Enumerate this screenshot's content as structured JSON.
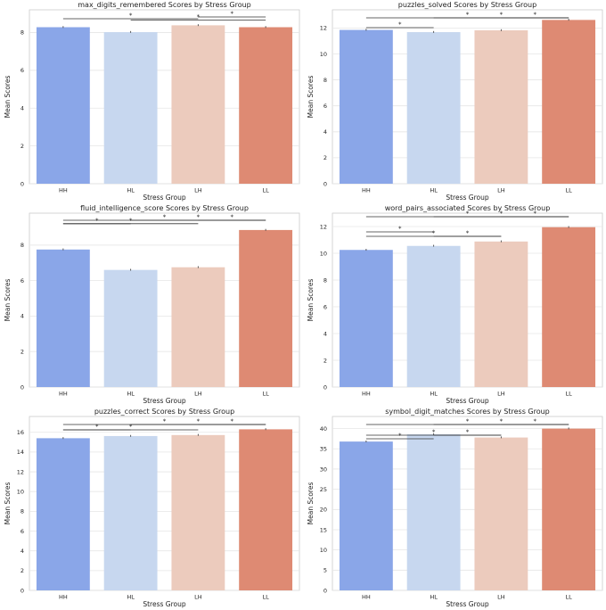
{
  "chart_data": [
    {
      "type": "bar",
      "title": "max_digits_remembered Scores by Stress Group",
      "xlabel": "Stress Group",
      "ylabel": "Mean Scores",
      "categories": [
        "HH",
        "HL",
        "LH",
        "LL"
      ],
      "values": [
        8.28,
        8.02,
        8.38,
        8.28
      ],
      "ylim": [
        0,
        9.2
      ],
      "yticks": [
        0,
        2,
        4,
        6,
        8
      ],
      "colors": [
        "#8aa6e8",
        "#c7d7ef",
        "#eccbbd",
        "#de8a73"
      ],
      "significance": [
        {
          "from": "HH",
          "to": "LH",
          "label": "*"
        },
        {
          "from": "HL",
          "to": "LL",
          "label": "*"
        },
        {
          "from": "LH",
          "to": "LL",
          "label": "*"
        }
      ]
    },
    {
      "type": "bar",
      "title": "puzzles_solved Scores by Stress Group",
      "xlabel": "Stress Group",
      "ylabel": "Mean Scores",
      "categories": [
        "HH",
        "HL",
        "LH",
        "LL"
      ],
      "values": [
        11.85,
        11.68,
        11.82,
        12.62
      ],
      "ylim": [
        0,
        13.4
      ],
      "yticks": [
        0,
        2,
        4,
        6,
        8,
        10,
        12
      ],
      "colors": [
        "#8aa6e8",
        "#c7d7ef",
        "#eccbbd",
        "#de8a73"
      ],
      "significance": [
        {
          "from": "HH",
          "to": "HL",
          "label": "*"
        },
        {
          "from": "HH",
          "to": "LL",
          "label": "*"
        },
        {
          "from": "HL",
          "to": "LL",
          "label": "*"
        },
        {
          "from": "LH",
          "to": "LL",
          "label": "*"
        }
      ]
    },
    {
      "type": "bar",
      "title": "fluid_intelligence_score Scores by Stress Group",
      "xlabel": "Stress Group",
      "ylabel": "Mean Scores",
      "categories": [
        "HH",
        "HL",
        "LH",
        "LL"
      ],
      "values": [
        7.75,
        6.6,
        6.75,
        8.85
      ],
      "ylim": [
        0,
        9.8
      ],
      "yticks": [
        0,
        2,
        4,
        6,
        8
      ],
      "colors": [
        "#8aa6e8",
        "#c7d7ef",
        "#eccbbd",
        "#de8a73"
      ],
      "significance": [
        {
          "from": "HH",
          "to": "HL",
          "label": "*"
        },
        {
          "from": "HH",
          "to": "LH",
          "label": "*"
        },
        {
          "from": "HH",
          "to": "LL",
          "label": "*"
        },
        {
          "from": "HL",
          "to": "LL",
          "label": "*"
        },
        {
          "from": "LH",
          "to": "LL",
          "label": "*"
        }
      ]
    },
    {
      "type": "bar",
      "title": "word_pairs_associated Scores by Stress Group",
      "xlabel": "Stress Group",
      "ylabel": "Mean Scores",
      "categories": [
        "HH",
        "HL",
        "LH",
        "LL"
      ],
      "values": [
        10.25,
        10.55,
        10.88,
        11.95
      ],
      "ylim": [
        0,
        13.0
      ],
      "yticks": [
        0,
        2,
        4,
        6,
        8,
        10,
        12
      ],
      "colors": [
        "#8aa6e8",
        "#c7d7ef",
        "#eccbbd",
        "#de8a73"
      ],
      "significance": [
        {
          "from": "HH",
          "to": "HL",
          "label": "*"
        },
        {
          "from": "HH",
          "to": "LH",
          "label": "*"
        },
        {
          "from": "HH",
          "to": "LL",
          "label": "*"
        },
        {
          "from": "HL",
          "to": "LH",
          "label": "*"
        },
        {
          "from": "HL",
          "to": "LL",
          "label": "*"
        },
        {
          "from": "LH",
          "to": "LL",
          "label": "*"
        }
      ]
    },
    {
      "type": "bar",
      "title": "puzzles_correct Scores by Stress Group",
      "xlabel": "Stress Group",
      "ylabel": "Mean Scores",
      "categories": [
        "HH",
        "HL",
        "LH",
        "LL"
      ],
      "values": [
        15.4,
        15.62,
        15.72,
        16.3
      ],
      "ylim": [
        0,
        17.6
      ],
      "yticks": [
        0,
        2,
        4,
        6,
        8,
        10,
        12,
        14,
        16
      ],
      "colors": [
        "#8aa6e8",
        "#c7d7ef",
        "#eccbbd",
        "#de8a73"
      ],
      "significance": [
        {
          "from": "HH",
          "to": "HL",
          "label": "*"
        },
        {
          "from": "HH",
          "to": "LH",
          "label": "*"
        },
        {
          "from": "HH",
          "to": "LL",
          "label": "*"
        },
        {
          "from": "HL",
          "to": "LL",
          "label": "*"
        },
        {
          "from": "LH",
          "to": "LL",
          "label": "*"
        }
      ]
    },
    {
      "type": "bar",
      "title": "symbol_digit_matches Scores by Stress Group",
      "xlabel": "Stress Group",
      "ylabel": "Mean Scores",
      "categories": [
        "HH",
        "HL",
        "LH",
        "LL"
      ],
      "values": [
        36.8,
        38.6,
        37.8,
        40.0
      ],
      "ylim": [
        0,
        43.0
      ],
      "yticks": [
        0,
        5,
        10,
        15,
        20,
        25,
        30,
        35,
        40
      ],
      "colors": [
        "#8aa6e8",
        "#c7d7ef",
        "#eccbbd",
        "#de8a73"
      ],
      "significance": [
        {
          "from": "HH",
          "to": "HL",
          "label": "*"
        },
        {
          "from": "HH",
          "to": "LH",
          "label": "*"
        },
        {
          "from": "HH",
          "to": "LL",
          "label": "*"
        },
        {
          "from": "HL",
          "to": "LH",
          "label": "*"
        },
        {
          "from": "HL",
          "to": "LL",
          "label": "*"
        },
        {
          "from": "LH",
          "to": "LL",
          "label": "*"
        }
      ]
    }
  ]
}
